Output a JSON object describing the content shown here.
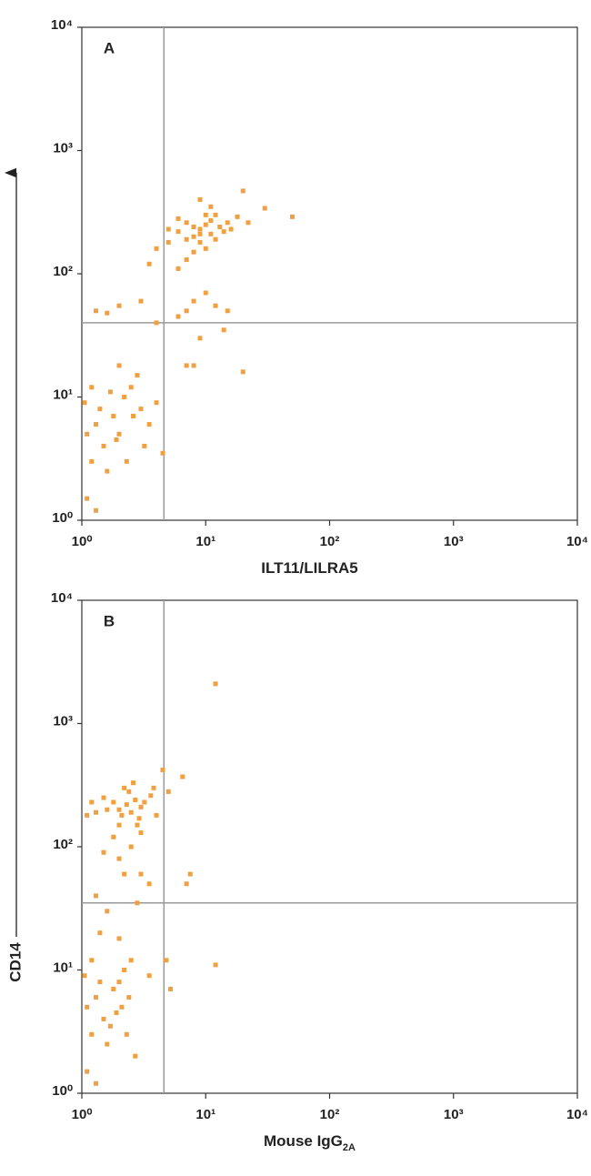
{
  "ylabel": "CD14",
  "chart_data": [
    {
      "type": "scatter",
      "panel": "A",
      "xlabel": "ILT11/LILRA5",
      "color": "#f0a040",
      "log": true,
      "xlim": [
        1,
        10000
      ],
      "ylim": [
        1,
        10000
      ],
      "xticks": [
        {
          "value": 1,
          "label": "10⁰"
        },
        {
          "value": 10,
          "label": "10¹"
        },
        {
          "value": 100,
          "label": "10²"
        },
        {
          "value": 1000,
          "label": "10³"
        },
        {
          "value": 10000,
          "label": "10⁴"
        }
      ],
      "yticks": [
        {
          "value": 1,
          "label": "10⁰"
        },
        {
          "value": 10,
          "label": "10¹"
        },
        {
          "value": 100,
          "label": "10²"
        },
        {
          "value": 1000,
          "label": "10³"
        },
        {
          "value": 10000,
          "label": "10⁴"
        }
      ],
      "gate_x": 4.6,
      "gate_y": 40,
      "x": [
        8,
        9,
        10,
        11,
        12,
        7,
        9,
        10,
        13,
        11,
        8,
        6,
        12,
        14,
        9,
        10,
        7,
        15,
        11,
        5,
        6,
        16,
        18,
        9,
        20,
        30,
        50,
        22,
        8,
        7,
        5,
        6,
        8,
        7,
        10,
        12,
        6,
        9,
        14,
        7,
        8,
        20,
        15,
        4,
        3,
        3.5,
        2,
        1.6,
        1.3,
        4,
        1.1,
        1.3,
        1.5,
        1.8,
        2,
        1.2,
        1.4,
        2.2,
        2.5,
        3,
        2.8,
        1.6,
        1.1,
        1.3,
        2,
        3.5,
        4,
        4.5,
        1.7,
        2.3,
        1.9,
        3.2,
        2.6,
        1.05,
        1.2
      ],
      "values": [
        200,
        230,
        250,
        210,
        190,
        260,
        180,
        300,
        240,
        270,
        240,
        220,
        300,
        220,
        210,
        160,
        190,
        260,
        350,
        230,
        280,
        230,
        290,
        400,
        470,
        340,
        290,
        260,
        150,
        130,
        180,
        110,
        60,
        50,
        70,
        55,
        45,
        30,
        35,
        18,
        18,
        16,
        50,
        40,
        60,
        120,
        55,
        48,
        50,
        160,
        5,
        6,
        4,
        7,
        5,
        3,
        8,
        10,
        12,
        8,
        15,
        2.5,
        1.5,
        1.2,
        18,
        6,
        9,
        3.5,
        11,
        3,
        4.5,
        4,
        7,
        9,
        12
      ]
    },
    {
      "type": "scatter",
      "panel": "B",
      "xlabel": "Mouse IgG",
      "xlabel_subscript": "2A",
      "color": "#f0a040",
      "log": true,
      "xlim": [
        1,
        10000
      ],
      "ylim": [
        1,
        10000
      ],
      "xticks": [
        {
          "value": 1,
          "label": "10⁰"
        },
        {
          "value": 10,
          "label": "10¹"
        },
        {
          "value": 100,
          "label": "10²"
        },
        {
          "value": 1000,
          "label": "10³"
        },
        {
          "value": 10000,
          "label": "10⁴"
        }
      ],
      "yticks": [
        {
          "value": 1,
          "label": "10⁰"
        },
        {
          "value": 10,
          "label": "10¹"
        },
        {
          "value": 100,
          "label": "10²"
        },
        {
          "value": 1000,
          "label": "10³"
        },
        {
          "value": 10000,
          "label": "10⁴"
        }
      ],
      "gate_x": 4.6,
      "gate_y": 35,
      "x": [
        2,
        2.3,
        2.5,
        1.8,
        2.1,
        2.7,
        3,
        1.6,
        1.5,
        2.4,
        2.9,
        3.2,
        3.6,
        1.3,
        1.2,
        2.2,
        2.6,
        3.8,
        4.5,
        4,
        6.5,
        5,
        1.1,
        2,
        2.8,
        2.5,
        2,
        3,
        1.5,
        3.5,
        1.3,
        2.8,
        7.5,
        7,
        1.8,
        3,
        2.2,
        1.6,
        1.1,
        1.3,
        1.5,
        1.8,
        2,
        1.2,
        1.4,
        2.2,
        2.5,
        1.6,
        1.1,
        1.3,
        2,
        2.3,
        1.9,
        1.05,
        1.2,
        2.1,
        1.7,
        2.4,
        3.5,
        1.4,
        2.7,
        12,
        12,
        5.2,
        4.8
      ],
      "values": [
        200,
        220,
        190,
        230,
        180,
        240,
        210,
        200,
        250,
        280,
        170,
        230,
        260,
        190,
        230,
        300,
        330,
        300,
        420,
        180,
        370,
        280,
        180,
        150,
        150,
        100,
        80,
        60,
        90,
        50,
        40,
        35,
        60,
        50,
        120,
        130,
        60,
        30,
        5,
        6,
        4,
        7,
        8,
        3,
        8,
        10,
        12,
        2.5,
        1.5,
        1.2,
        18,
        3,
        4.5,
        9,
        12,
        5,
        3.5,
        6,
        9,
        20,
        2,
        2100,
        11,
        7,
        12
      ]
    }
  ]
}
